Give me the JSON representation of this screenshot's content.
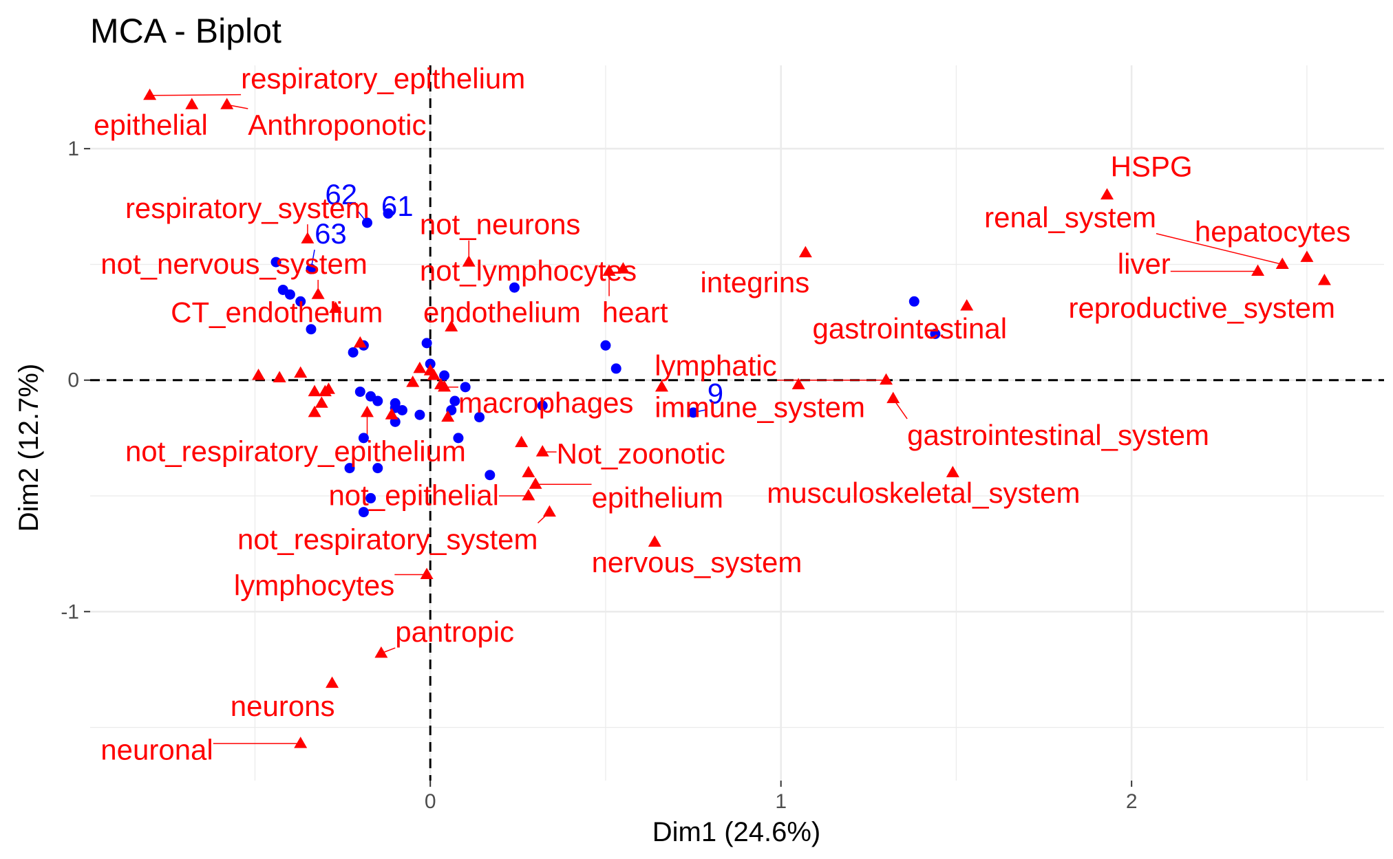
{
  "chart_data": {
    "type": "scatter",
    "title": "MCA - Biplot",
    "xlabel": "Dim1 (24.6%)",
    "ylabel": "Dim2 (12.7%)",
    "xlim": [
      -0.97,
      2.72
    ],
    "ylim": [
      -1.73,
      1.36
    ],
    "x_ticks": [
      0,
      1,
      2
    ],
    "x_tick_labels": [
      "0",
      "1",
      "2"
    ],
    "y_ticks": [
      -1,
      0,
      1
    ],
    "y_tick_labels": [
      "-1",
      "0",
      "1"
    ],
    "grid": true,
    "legend": "none",
    "colors": {
      "variables": "#ff0000",
      "individuals": "#0000ff",
      "grid": "#ebebeb",
      "reference_line": "#000000"
    },
    "variables": [
      {
        "label": "respiratory_epithelium",
        "x": -0.8,
        "y": 1.23,
        "lx": -0.54,
        "ly": 1.26
      },
      {
        "label": "epithelial",
        "x": -0.68,
        "y": 1.19,
        "lx": -0.96,
        "ly": 1.06
      },
      {
        "label": "Anthroponotic",
        "x": -0.58,
        "y": 1.19,
        "lx": -0.52,
        "ly": 1.06
      },
      {
        "label": "HSPG",
        "x": 1.93,
        "y": 0.8,
        "lx": 1.94,
        "ly": 0.88
      },
      {
        "label": "renal_system",
        "x": 2.43,
        "y": 0.5,
        "lx": 1.58,
        "ly": 0.66
      },
      {
        "label": "hepatocytes",
        "x": 2.5,
        "y": 0.53,
        "lx": 2.18,
        "ly": 0.6
      },
      {
        "label": "liver",
        "x": 2.36,
        "y": 0.47,
        "lx": 1.96,
        "ly": 0.46
      },
      {
        "label": "reproductive_system",
        "x": 2.55,
        "y": 0.43,
        "lx": 1.82,
        "ly": 0.27
      },
      {
        "label": "respiratory_system",
        "x": -0.35,
        "y": 0.61,
        "lx": -0.87,
        "ly": 0.7
      },
      {
        "label": "not_nervous_system",
        "x": -0.32,
        "y": 0.37,
        "lx": -0.94,
        "ly": 0.46
      },
      {
        "label": "not_neurons",
        "x": 0.11,
        "y": 0.51,
        "lx": -0.03,
        "ly": 0.63
      },
      {
        "label": "not_lymphocytes",
        "x": 0.55,
        "y": 0.48,
        "lx": -0.03,
        "ly": 0.43
      },
      {
        "label": "integrins",
        "x": 1.07,
        "y": 0.55,
        "lx": 0.77,
        "ly": 0.38
      },
      {
        "label": "CT_endothelium",
        "x": -0.27,
        "y": 0.31,
        "lx": -0.74,
        "ly": 0.25
      },
      {
        "label": "endothelium",
        "x": 0.06,
        "y": 0.23,
        "lx": -0.02,
        "ly": 0.25
      },
      {
        "label": "heart",
        "x": 0.51,
        "y": 0.47,
        "lx": 0.49,
        "ly": 0.25
      },
      {
        "label": "gastrointestinal",
        "x": 1.53,
        "y": 0.32,
        "lx": 1.09,
        "ly": 0.18
      },
      {
        "label": "lymphatic",
        "x": 1.3,
        "y": 0.0,
        "lx": 0.64,
        "ly": 0.02
      },
      {
        "label": "immune_system",
        "x": 1.05,
        "y": -0.02,
        "lx": 0.64,
        "ly": -0.16
      },
      {
        "label": "gastrointestinal_system",
        "x": 1.32,
        "y": -0.08,
        "lx": 1.36,
        "ly": -0.28
      },
      {
        "label": "musculoskeletal_system",
        "x": 1.49,
        "y": -0.4,
        "lx": 0.96,
        "ly": -0.53
      },
      {
        "label": "macrophages",
        "x": 0.04,
        "y": -0.03,
        "lx": 0.08,
        "ly": -0.14
      },
      {
        "label": "Not_zoonotic",
        "x": 0.32,
        "y": -0.31,
        "lx": 0.36,
        "ly": -0.36
      },
      {
        "label": "not_respiratory_epithelium",
        "x": -0.18,
        "y": -0.14,
        "lx": -0.87,
        "ly": -0.35
      },
      {
        "label": "epithelium",
        "x": 0.3,
        "y": -0.45,
        "lx": 0.46,
        "ly": -0.55
      },
      {
        "label": "not_epithelial",
        "x": 0.28,
        "y": -0.5,
        "lx": -0.29,
        "ly": -0.54
      },
      {
        "label": "not_respiratory_system",
        "x": 0.34,
        "y": -0.57,
        "lx": -0.55,
        "ly": -0.73
      },
      {
        "label": "nervous_system",
        "x": 0.64,
        "y": -0.7,
        "lx": 0.46,
        "ly": -0.83
      },
      {
        "label": "lymphocytes",
        "x": -0.01,
        "y": -0.84,
        "lx": -0.56,
        "ly": -0.93
      },
      {
        "label": "pantropic",
        "x": -0.14,
        "y": -1.18,
        "lx": -0.1,
        "ly": -1.13
      },
      {
        "label": "neurons",
        "x": -0.28,
        "y": -1.31,
        "lx": -0.57,
        "ly": -1.45
      },
      {
        "label": "neuronal",
        "x": -0.37,
        "y": -1.57,
        "lx": -0.94,
        "ly": -1.64
      },
      {
        "label": "",
        "x": -0.49,
        "y": 0.02
      },
      {
        "label": "",
        "x": -0.43,
        "y": 0.01
      },
      {
        "label": "",
        "x": -0.37,
        "y": 0.03
      },
      {
        "label": "",
        "x": -0.33,
        "y": -0.05
      },
      {
        "label": "",
        "x": -0.3,
        "y": -0.05
      },
      {
        "label": "",
        "x": -0.29,
        "y": -0.04
      },
      {
        "label": "",
        "x": -0.33,
        "y": -0.14
      },
      {
        "label": "",
        "x": -0.31,
        "y": -0.1
      },
      {
        "label": "",
        "x": -0.2,
        "y": 0.16
      },
      {
        "label": "",
        "x": -0.03,
        "y": 0.05
      },
      {
        "label": "",
        "x": 0.0,
        "y": 0.04
      },
      {
        "label": "",
        "x": 0.01,
        "y": 0.02
      },
      {
        "label": "",
        "x": 0.03,
        "y": -0.02
      },
      {
        "label": "",
        "x": -0.05,
        "y": -0.01
      },
      {
        "label": "",
        "x": 0.05,
        "y": -0.16
      },
      {
        "label": "",
        "x": -0.11,
        "y": -0.15
      },
      {
        "label": "",
        "x": 0.26,
        "y": -0.27
      },
      {
        "label": "",
        "x": 0.28,
        "y": -0.4
      },
      {
        "label": "",
        "x": 0.66,
        "y": -0.03
      }
    ],
    "individuals": [
      {
        "label": "62",
        "x": -0.18,
        "y": 0.68,
        "lx": -0.3,
        "ly": 0.76
      },
      {
        "label": "61",
        "x": -0.12,
        "y": 0.72,
        "lx": -0.14,
        "ly": 0.71
      },
      {
        "label": "63",
        "x": -0.34,
        "y": 0.48,
        "lx": -0.33,
        "ly": 0.59
      },
      {
        "label": "9",
        "x": 0.75,
        "y": -0.14,
        "lx": 0.79,
        "ly": -0.1
      },
      {
        "label": "",
        "x": -0.44,
        "y": 0.51
      },
      {
        "label": "",
        "x": -0.42,
        "y": 0.39
      },
      {
        "label": "",
        "x": -0.4,
        "y": 0.37
      },
      {
        "label": "",
        "x": -0.37,
        "y": 0.34
      },
      {
        "label": "",
        "x": -0.34,
        "y": 0.22
      },
      {
        "label": "",
        "x": -0.22,
        "y": 0.12
      },
      {
        "label": "",
        "x": -0.19,
        "y": 0.15
      },
      {
        "label": "",
        "x": -0.01,
        "y": 0.16
      },
      {
        "label": "",
        "x": 0.0,
        "y": 0.07
      },
      {
        "label": "",
        "x": 0.04,
        "y": 0.02
      },
      {
        "label": "",
        "x": 0.24,
        "y": 0.4
      },
      {
        "label": "",
        "x": 0.5,
        "y": 0.15
      },
      {
        "label": "",
        "x": 0.53,
        "y": 0.05
      },
      {
        "label": "",
        "x": 1.38,
        "y": 0.34
      },
      {
        "label": "",
        "x": 1.44,
        "y": 0.2
      },
      {
        "label": "",
        "x": -0.2,
        "y": -0.05
      },
      {
        "label": "",
        "x": -0.17,
        "y": -0.07
      },
      {
        "label": "",
        "x": -0.15,
        "y": -0.09
      },
      {
        "label": "",
        "x": -0.1,
        "y": -0.1
      },
      {
        "label": "",
        "x": -0.08,
        "y": -0.13
      },
      {
        "label": "",
        "x": -0.1,
        "y": -0.12
      },
      {
        "label": "",
        "x": -0.03,
        "y": -0.15
      },
      {
        "label": "",
        "x": -0.1,
        "y": -0.18
      },
      {
        "label": "",
        "x": 0.07,
        "y": -0.09
      },
      {
        "label": "",
        "x": 0.06,
        "y": -0.13
      },
      {
        "label": "",
        "x": 0.1,
        "y": -0.03
      },
      {
        "label": "",
        "x": 0.14,
        "y": -0.16
      },
      {
        "label": "",
        "x": 0.32,
        "y": -0.11
      },
      {
        "label": "",
        "x": 0.08,
        "y": -0.25
      },
      {
        "label": "",
        "x": 0.17,
        "y": -0.41
      },
      {
        "label": "",
        "x": -0.19,
        "y": -0.25
      },
      {
        "label": "",
        "x": -0.23,
        "y": -0.38
      },
      {
        "label": "",
        "x": -0.15,
        "y": -0.38
      },
      {
        "label": "",
        "x": -0.17,
        "y": -0.51
      },
      {
        "label": "",
        "x": -0.19,
        "y": -0.57
      }
    ]
  }
}
